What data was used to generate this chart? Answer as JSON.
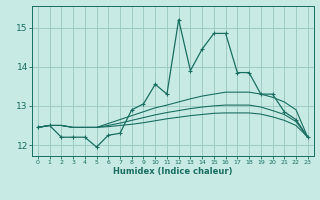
{
  "xlabel": "Humidex (Indice chaleur)",
  "bg_color": "#c8eae4",
  "grid_color": "#a0ccc6",
  "line_color": "#1a6e62",
  "xlim": [
    -0.5,
    23.5
  ],
  "ylim": [
    11.72,
    15.55
  ],
  "yticks": [
    12,
    13,
    14,
    15
  ],
  "xticks": [
    0,
    1,
    2,
    3,
    4,
    5,
    6,
    7,
    8,
    9,
    10,
    11,
    12,
    13,
    14,
    15,
    16,
    17,
    18,
    19,
    20,
    21,
    22,
    23
  ],
  "lines": [
    {
      "x": [
        0,
        1,
        2,
        3,
        4,
        5,
        6,
        7,
        8,
        9,
        10,
        11,
        12,
        13,
        14,
        15,
        16,
        17,
        18,
        19,
        20,
        21,
        22,
        23
      ],
      "y": [
        12.45,
        12.5,
        12.2,
        12.2,
        12.2,
        11.95,
        12.25,
        12.3,
        12.9,
        13.05,
        13.55,
        13.3,
        15.2,
        13.9,
        14.45,
        14.85,
        14.85,
        13.85,
        13.85,
        13.3,
        13.3,
        12.85,
        12.65,
        12.2
      ],
      "marker": true
    },
    {
      "x": [
        0,
        1,
        2,
        3,
        4,
        5,
        6,
        7,
        8,
        9,
        10,
        11,
        12,
        13,
        14,
        15,
        16,
        17,
        18,
        19,
        20,
        21,
        22,
        23
      ],
      "y": [
        12.45,
        12.5,
        12.5,
        12.45,
        12.45,
        12.45,
        12.55,
        12.65,
        12.75,
        12.85,
        12.95,
        13.02,
        13.1,
        13.18,
        13.25,
        13.3,
        13.35,
        13.35,
        13.35,
        13.3,
        13.22,
        13.1,
        12.9,
        12.2
      ],
      "marker": false
    },
    {
      "x": [
        0,
        1,
        2,
        3,
        4,
        5,
        6,
        7,
        8,
        9,
        10,
        11,
        12,
        13,
        14,
        15,
        16,
        17,
        18,
        19,
        20,
        21,
        22,
        23
      ],
      "y": [
        12.45,
        12.5,
        12.5,
        12.45,
        12.45,
        12.45,
        12.5,
        12.56,
        12.63,
        12.7,
        12.77,
        12.83,
        12.88,
        12.93,
        12.97,
        13.0,
        13.02,
        13.02,
        13.02,
        12.97,
        12.88,
        12.78,
        12.6,
        12.2
      ],
      "marker": false
    },
    {
      "x": [
        0,
        1,
        2,
        3,
        4,
        5,
        6,
        7,
        8,
        9,
        10,
        11,
        12,
        13,
        14,
        15,
        16,
        17,
        18,
        19,
        20,
        21,
        22,
        23
      ],
      "y": [
        12.45,
        12.5,
        12.5,
        12.45,
        12.45,
        12.45,
        12.47,
        12.5,
        12.53,
        12.57,
        12.62,
        12.67,
        12.71,
        12.75,
        12.78,
        12.81,
        12.82,
        12.82,
        12.82,
        12.79,
        12.72,
        12.63,
        12.5,
        12.2
      ],
      "marker": false
    }
  ]
}
